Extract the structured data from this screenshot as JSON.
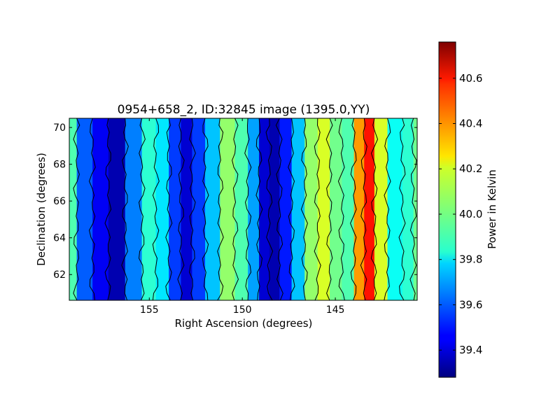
{
  "chart_data": {
    "type": "heatmap",
    "title": "0954+658_2, ID:32845 image (1395.0,YY)",
    "xlabel": "Right Ascension (degrees)",
    "ylabel": "Declination (degrees)",
    "x_range": [
      159.3,
      140.6
    ],
    "y_range": [
      60.6,
      70.5
    ],
    "x_ticks": [
      155,
      150,
      145
    ],
    "y_ticks": [
      62,
      64,
      66,
      68,
      70
    ],
    "colormap": "jet",
    "contours": true,
    "colorbar": {
      "label": "Power in Kelvin",
      "range": [
        39.28,
        40.76
      ],
      "ticks": [
        39.4,
        39.6,
        39.8,
        40.0,
        40.2,
        40.4,
        40.6
      ]
    },
    "column_profile": [
      {
        "ra": 159.3,
        "value": 39.95
      },
      {
        "ra": 158.5,
        "value": 39.6
      },
      {
        "ra": 157.6,
        "value": 39.45
      },
      {
        "ra": 156.8,
        "value": 39.35
      },
      {
        "ra": 155.8,
        "value": 39.65
      },
      {
        "ra": 155.0,
        "value": 39.9
      },
      {
        "ra": 154.3,
        "value": 39.8
      },
      {
        "ra": 153.6,
        "value": 39.55
      },
      {
        "ra": 153.0,
        "value": 39.4
      },
      {
        "ra": 152.4,
        "value": 39.55
      },
      {
        "ra": 151.6,
        "value": 39.75
      },
      {
        "ra": 150.8,
        "value": 40.05
      },
      {
        "ra": 150.0,
        "value": 39.95
      },
      {
        "ra": 149.4,
        "value": 39.7
      },
      {
        "ra": 148.8,
        "value": 39.4
      },
      {
        "ra": 148.3,
        "value": 39.35
      },
      {
        "ra": 147.7,
        "value": 39.5
      },
      {
        "ra": 147.0,
        "value": 39.75
      },
      {
        "ra": 146.3,
        "value": 40.05
      },
      {
        "ra": 145.6,
        "value": 40.15
      },
      {
        "ra": 145.0,
        "value": 40.0
      },
      {
        "ra": 144.3,
        "value": 39.95
      },
      {
        "ra": 143.7,
        "value": 40.35
      },
      {
        "ra": 143.2,
        "value": 40.55
      },
      {
        "ra": 142.6,
        "value": 40.15
      },
      {
        "ra": 141.8,
        "value": 39.85
      },
      {
        "ra": 141.0,
        "value": 39.9
      },
      {
        "ra": 140.6,
        "value": 40.0
      }
    ]
  }
}
